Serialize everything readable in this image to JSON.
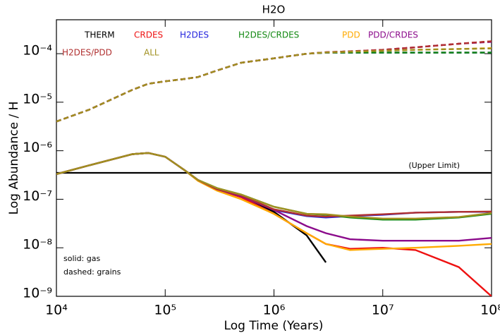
{
  "chart_data": {
    "type": "line",
    "title": "H2O",
    "x_label": "Log Time (Years)",
    "y_label": "Log Abundance / H",
    "log_x": true,
    "log_y": true,
    "xlim": [
      10000,
      100000000
    ],
    "ylim": [
      1e-09,
      0.0005
    ],
    "xticks": [
      {
        "value": 10000,
        "label": "10⁴"
      },
      {
        "value": 100000,
        "label": "10⁵"
      },
      {
        "value": 1000000,
        "label": "10⁶"
      },
      {
        "value": 10000000,
        "label": "10⁷"
      },
      {
        "value": 100000000,
        "label": "10⁸"
      }
    ],
    "yticks": [
      {
        "value": 1e-09,
        "label": "10⁻⁹"
      },
      {
        "value": 1e-08,
        "label": "10⁻⁸"
      },
      {
        "value": 1e-07,
        "label": "10⁻⁷"
      },
      {
        "value": 1e-06,
        "label": "10⁻⁶"
      },
      {
        "value": 1e-05,
        "label": "10⁻⁵"
      },
      {
        "value": 0.0001,
        "label": "10⁻⁴"
      }
    ],
    "upper_limit": 3.5e-07,
    "upper_limit_label": "(Upper Limit)",
    "notes": [
      "solid: gas",
      "dashed: grains"
    ],
    "x": [
      10000,
      20000,
      50000,
      70000,
      100000,
      150000,
      200000,
      300000,
      500000,
      1000000,
      2000000,
      3000000,
      5000000,
      10000000,
      20000000,
      50000000,
      100000000
    ],
    "series": [
      {
        "name": "THERM",
        "color": "#000000",
        "values": [
          3.3e-07,
          5e-07,
          8.5e-07,
          9e-07,
          7.5e-07,
          4e-07,
          2.5e-07,
          1.6e-07,
          1.2e-07,
          5.5e-08,
          1.8e-08,
          5e-09,
          null,
          null,
          null,
          null,
          null
        ],
        "grain_values": [
          4e-06,
          7e-06,
          1.8e-05,
          2.4e-05,
          2.7e-05,
          3e-05,
          3.3e-05,
          4.5e-05,
          6.5e-05,
          8e-05,
          0.0001,
          0.000105,
          0.000105,
          0.000105,
          0.000105,
          0.000105,
          0.000105
        ]
      },
      {
        "name": "CRDES",
        "color": "#ee1111",
        "values": [
          3.3e-07,
          5e-07,
          8.5e-07,
          9e-07,
          7.5e-07,
          4e-07,
          2.5e-07,
          1.6e-07,
          1.1e-07,
          5e-08,
          2e-08,
          1.2e-08,
          9.5e-09,
          1e-08,
          9e-09,
          4e-09,
          1e-09
        ],
        "grain_values": [
          4e-06,
          7e-06,
          1.8e-05,
          2.4e-05,
          2.7e-05,
          3e-05,
          3.3e-05,
          4.5e-05,
          6.5e-05,
          8e-05,
          0.0001,
          0.000107,
          0.000112,
          0.00012,
          0.000135,
          0.00016,
          0.00018
        ]
      },
      {
        "name": "H2DES",
        "color": "#2222dd",
        "values": [
          3.3e-07,
          5e-07,
          8.5e-07,
          9e-07,
          7.5e-07,
          4e-07,
          2.5e-07,
          1.6e-07,
          1.2e-07,
          6e-08,
          4.5e-08,
          4.2e-08,
          4.5e-08,
          4.8e-08,
          5.3e-08,
          5.5e-08,
          5.5e-08
        ],
        "grain_values": [
          4e-06,
          7e-06,
          1.8e-05,
          2.4e-05,
          2.7e-05,
          3e-05,
          3.3e-05,
          4.5e-05,
          6.5e-05,
          8e-05,
          0.0001,
          0.000105,
          0.000105,
          0.000105,
          0.000105,
          0.000105,
          0.000105
        ]
      },
      {
        "name": "H2DES/CRDES",
        "color": "#118811",
        "values": [
          3.3e-07,
          5e-07,
          8.5e-07,
          9e-07,
          7.5e-07,
          4e-07,
          2.5e-07,
          1.7e-07,
          1.25e-07,
          7e-08,
          5e-08,
          4.8e-08,
          4.2e-08,
          3.8e-08,
          3.8e-08,
          4.2e-08,
          5e-08
        ],
        "grain_values": [
          4e-06,
          7e-06,
          1.8e-05,
          2.4e-05,
          2.7e-05,
          3e-05,
          3.3e-05,
          4.5e-05,
          6.5e-05,
          8e-05,
          0.0001,
          0.000105,
          0.000105,
          0.000105,
          0.000105,
          0.000105,
          0.000105
        ]
      },
      {
        "name": "PDD",
        "color": "#ffaa00",
        "values": [
          3.3e-07,
          5e-07,
          8.5e-07,
          9e-07,
          7.5e-07,
          4e-07,
          2.4e-07,
          1.5e-07,
          1e-07,
          5e-08,
          2e-08,
          1.2e-08,
          9e-09,
          9.5e-09,
          1e-08,
          1.1e-08,
          1.2e-08
        ],
        "grain_values": [
          4e-06,
          7e-06,
          1.8e-05,
          2.4e-05,
          2.7e-05,
          3e-05,
          3.3e-05,
          4.5e-05,
          6.5e-05,
          8e-05,
          0.0001,
          0.000106,
          0.00011,
          0.000115,
          0.00012,
          0.000125,
          0.00013
        ]
      },
      {
        "name": "PDD/CRDES",
        "color": "#8b0a8b",
        "values": [
          3.3e-07,
          5e-07,
          8.5e-07,
          9e-07,
          7.5e-07,
          4e-07,
          2.5e-07,
          1.6e-07,
          1.15e-07,
          6e-08,
          2.8e-08,
          2e-08,
          1.5e-08,
          1.4e-08,
          1.4e-08,
          1.4e-08,
          1.6e-08
        ],
        "grain_values": [
          4e-06,
          7e-06,
          1.8e-05,
          2.4e-05,
          2.7e-05,
          3e-05,
          3.3e-05,
          4.5e-05,
          6.5e-05,
          8e-05,
          0.0001,
          0.000107,
          0.000112,
          0.00012,
          0.000135,
          0.00016,
          0.000175
        ]
      },
      {
        "name": "H2DES/PDD",
        "color": "#b03030",
        "values": [
          3.3e-07,
          5e-07,
          8.5e-07,
          9e-07,
          7.5e-07,
          4e-07,
          2.5e-07,
          1.6e-07,
          1.2e-07,
          6.2e-08,
          4.6e-08,
          4.4e-08,
          4.6e-08,
          4.9e-08,
          5.3e-08,
          5.5e-08,
          5.6e-08
        ],
        "grain_values": [
          4e-06,
          7e-06,
          1.8e-05,
          2.4e-05,
          2.7e-05,
          3e-05,
          3.3e-05,
          4.5e-05,
          6.5e-05,
          8e-05,
          0.0001,
          0.000107,
          0.000112,
          0.00012,
          0.000135,
          0.00016,
          0.00018
        ]
      },
      {
        "name": "ALL",
        "color": "#a09020",
        "values": [
          3.3e-07,
          5e-07,
          8.5e-07,
          9e-07,
          7.5e-07,
          4e-07,
          2.5e-07,
          1.7e-07,
          1.25e-07,
          7e-08,
          5e-08,
          4.9e-08,
          4.4e-08,
          4e-08,
          4e-08,
          4.3e-08,
          5.2e-08
        ],
        "grain_values": [
          4e-06,
          7e-06,
          1.8e-05,
          2.4e-05,
          2.7e-05,
          3e-05,
          3.3e-05,
          4.5e-05,
          6.5e-05,
          8e-05,
          0.0001,
          0.000106,
          0.00011,
          0.000115,
          0.00012,
          0.000125,
          0.000128
        ]
      }
    ]
  }
}
